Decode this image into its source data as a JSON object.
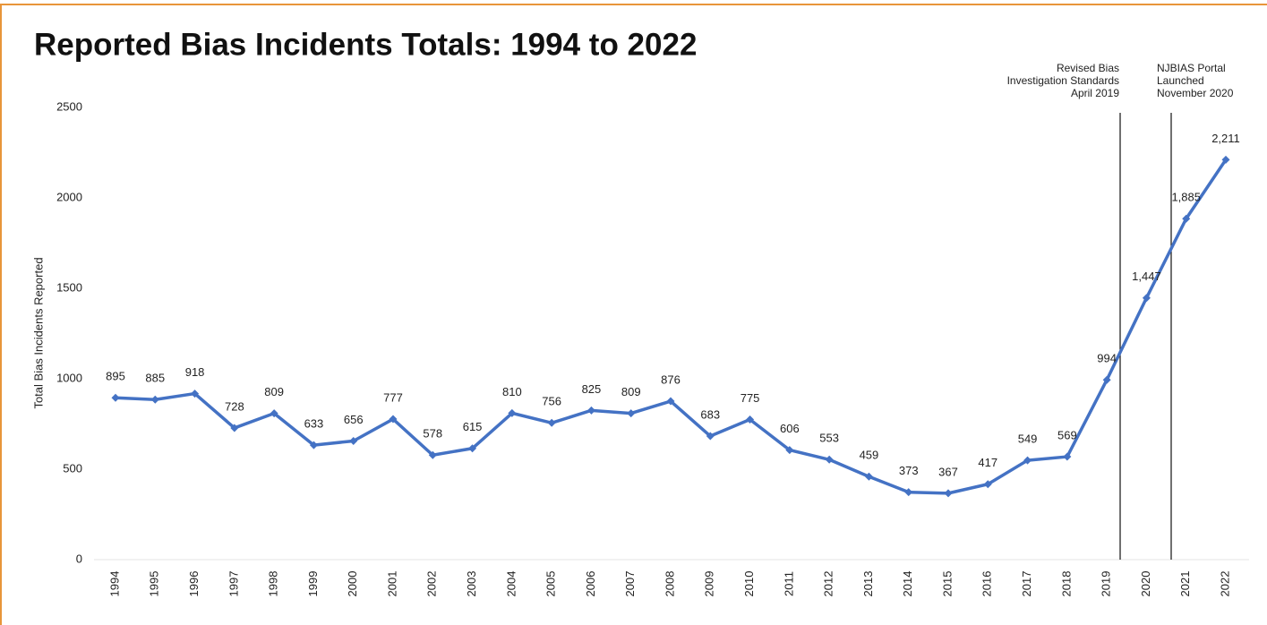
{
  "chart_data": {
    "type": "line",
    "title": "Reported Bias Incidents Totals: 1994 to 2022",
    "y_axis_label": "Total Bias Incidents Reported",
    "categories": [
      "1994",
      "1995",
      "1996",
      "1997",
      "1998",
      "1999",
      "2000",
      "2001",
      "2002",
      "2003",
      "2004",
      "2005",
      "2006",
      "2007",
      "2008",
      "2009",
      "2010",
      "2011",
      "2012",
      "2013",
      "2014",
      "2015",
      "2016",
      "2017",
      "2018",
      "2019",
      "2020",
      "2021",
      "2022"
    ],
    "series": [
      {
        "name": "Total Bias Incidents Reported",
        "color": "#4472c4",
        "values": [
          895,
          885,
          918,
          728,
          809,
          633,
          656,
          777,
          578,
          615,
          810,
          756,
          825,
          809,
          876,
          683,
          775,
          606,
          553,
          459,
          373,
          367,
          417,
          549,
          569,
          994,
          1447,
          1885,
          2211
        ],
        "value_labels": [
          "895",
          "885",
          "918",
          "728",
          "809",
          "633",
          "656",
          "777",
          "578",
          "615",
          "810",
          "756",
          "825",
          "809",
          "876",
          "683",
          "775",
          "606",
          "553",
          "459",
          "373",
          "367",
          "417",
          "549",
          "569",
          "994",
          "1,447",
          "1,885",
          "2,211"
        ]
      }
    ],
    "ylim": [
      0,
      2500
    ],
    "yticks": [
      0,
      500,
      1000,
      1500,
      2000,
      2500
    ],
    "grid": false,
    "annotations": [
      {
        "lines": [
          "Revised Bias",
          "Investigation Standards",
          "April 2019"
        ]
      },
      {
        "lines": [
          "NJBIAS Portal",
          "Launched",
          "November 2020"
        ]
      }
    ]
  }
}
